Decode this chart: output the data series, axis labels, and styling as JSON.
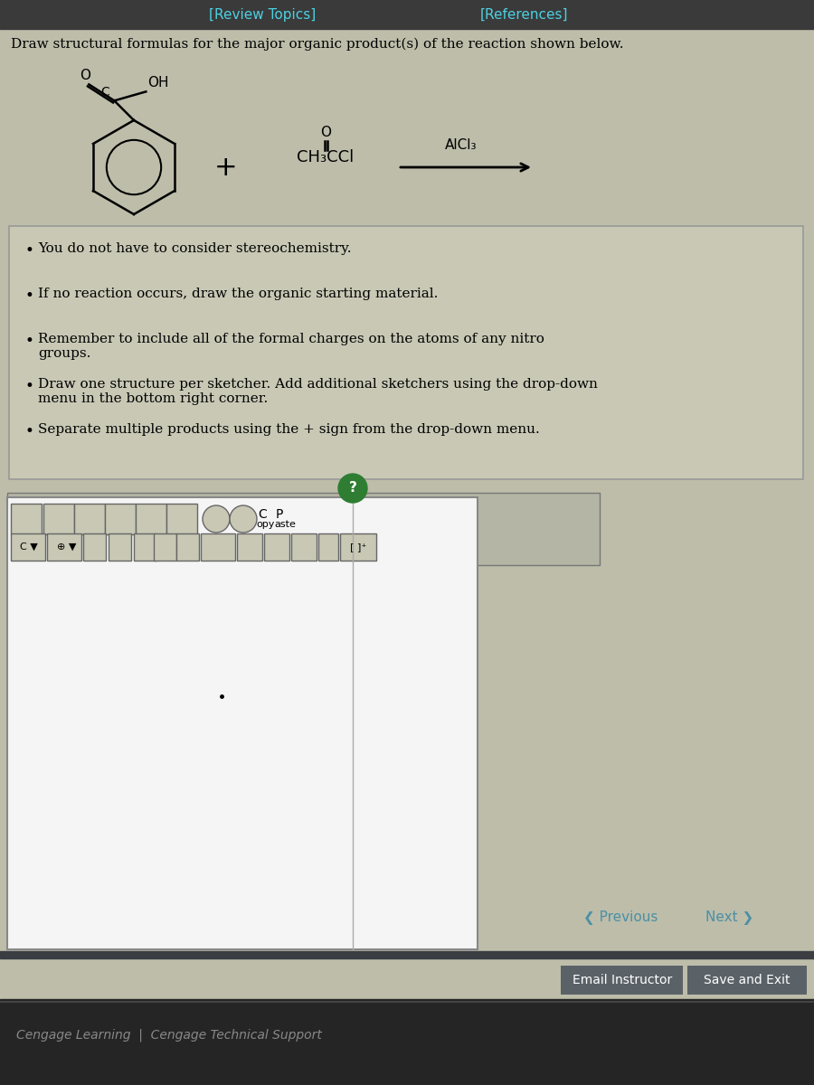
{
  "bg_top_bar": "#3a3a3a",
  "bg_main": "#bdbdaa",
  "bg_instruction_box": "#c8c8b5",
  "bg_toolbar_outer": "#b0b0a0",
  "bg_sketcher": "#e8e8e0",
  "bg_bottom_sep": "#3a3d42",
  "bg_bottom_bar": "#1a1a1a",
  "nav_button_color": "#4a90a4",
  "email_button_color": "#666666",
  "save_button_color": "#666666",
  "top_links": [
    "[Review Topics]",
    "[References]"
  ],
  "top_link_color": "#4dd0e1",
  "main_instruction": "Draw structural formulas for the major organic product(s) of the reaction shown below.",
  "bullet_points": [
    "You do not have to consider stereochemistry.",
    "If no reaction occurs, draw the organic starting material.",
    "Remember to include all of the formal charges on the atoms of any nitro\ngroups.",
    "Draw one structure per sketcher. Add additional sketchers using the drop-down\nmenu in the bottom right corner.",
    "Separate multiple products using the + sign from the drop-down menu."
  ],
  "footer_text": "Cengage Learning  |  Cengage Technical Support",
  "previous_text": "Previous",
  "next_text": "Next",
  "email_text": "Email Instructor",
  "save_text": "Save and Exit",
  "question_circle_color": "#2e7d32",
  "sketcher_white": "#f5f5f5",
  "sketcher_border": "#888888"
}
